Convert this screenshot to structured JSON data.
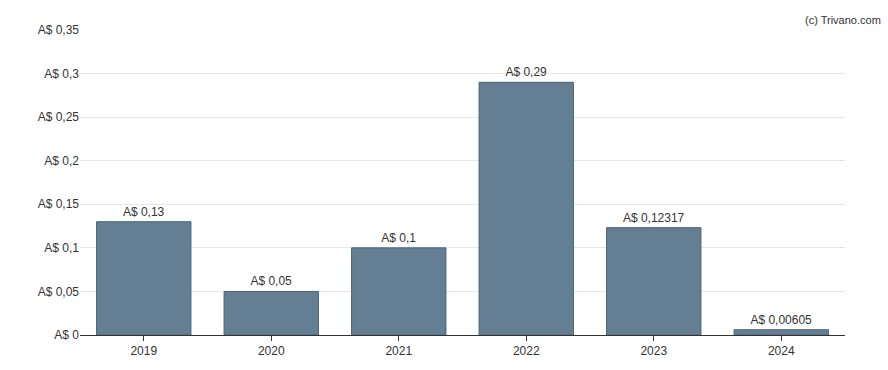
{
  "chart_data": {
    "type": "bar",
    "categories": [
      "2019",
      "2020",
      "2021",
      "2022",
      "2023",
      "2024"
    ],
    "values": [
      0.13,
      0.05,
      0.1,
      0.29,
      0.12317,
      0.00605
    ],
    "value_labels": [
      "A$ 0,13",
      "A$ 0,05",
      "A$ 0,1",
      "A$ 0,29",
      "A$ 0,12317",
      "A$ 0,00605"
    ],
    "data_labels": true,
    "color": "#647f93",
    "ylim": [
      0,
      0.35
    ],
    "yticks": [
      {
        "value": 0,
        "label": "A$ 0"
      },
      {
        "value": 0.05,
        "label": "A$ 0,05"
      },
      {
        "value": 0.1,
        "label": "A$ 0,1"
      },
      {
        "value": 0.15,
        "label": "A$ 0,15"
      },
      {
        "value": 0.2,
        "label": "A$ 0,2"
      },
      {
        "value": 0.25,
        "label": "A$ 0,25"
      },
      {
        "value": 0.3,
        "label": "A$ 0,3"
      },
      {
        "value": 0.35,
        "label": "A$ 0,35"
      }
    ],
    "grid": true,
    "annotations": [
      "(c) Trivano.com"
    ]
  }
}
